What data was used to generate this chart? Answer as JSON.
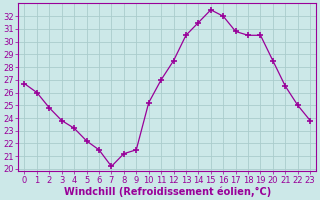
{
  "x": [
    0,
    1,
    2,
    3,
    4,
    5,
    6,
    7,
    8,
    9,
    10,
    11,
    12,
    13,
    14,
    15,
    16,
    17,
    18,
    19,
    20,
    21,
    22,
    23
  ],
  "y": [
    26.7,
    26.0,
    24.8,
    23.8,
    23.2,
    22.2,
    21.5,
    20.2,
    21.2,
    21.5,
    25.2,
    27.0,
    28.5,
    30.5,
    31.5,
    32.5,
    32.0,
    30.8,
    30.5,
    30.5,
    28.5,
    26.5,
    25.0,
    23.8
  ],
  "line_color": "#990099",
  "marker": "+",
  "marker_size": 5,
  "marker_linewidth": 1.2,
  "bg_color": "#cce8e8",
  "grid_color": "#aacccc",
  "xlabel": "Windchill (Refroidissement éolien,°C)",
  "xlabel_color": "#990099",
  "tick_color": "#990099",
  "spine_color": "#990099",
  "yticks": [
    20,
    21,
    22,
    23,
    24,
    25,
    26,
    27,
    28,
    29,
    30,
    31,
    32
  ],
  "xticks": [
    0,
    1,
    2,
    3,
    4,
    5,
    6,
    7,
    8,
    9,
    10,
    11,
    12,
    13,
    14,
    15,
    16,
    17,
    18,
    19,
    20,
    21,
    22,
    23
  ],
  "tick_fontsize": 6,
  "xlabel_fontsize": 7,
  "ylim_min": 19.8,
  "ylim_max": 33.0,
  "xlim_min": -0.5,
  "xlim_max": 23.5
}
